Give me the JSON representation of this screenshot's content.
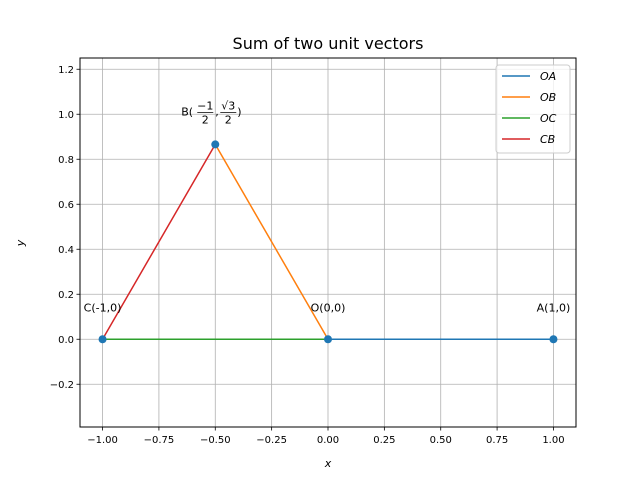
{
  "chart_data": {
    "type": "line",
    "title": "Sum of two unit vectors",
    "xlabel": "x",
    "ylabel": "y",
    "xlim": [
      -1.1,
      1.1
    ],
    "ylim": [
      -0.39,
      1.25
    ],
    "xticks": [
      -1.0,
      -0.75,
      -0.5,
      -0.25,
      0.0,
      0.25,
      0.5,
      0.75,
      1.0
    ],
    "xtick_labels": [
      "−1.00",
      "−0.75",
      "−0.50",
      "−0.25",
      "0.00",
      "0.25",
      "0.50",
      "0.75",
      "1.00"
    ],
    "yticks": [
      -0.2,
      0.0,
      0.2,
      0.4,
      0.6,
      0.8,
      1.0,
      1.2
    ],
    "ytick_labels": [
      "−0.2",
      "0.0",
      "0.2",
      "0.4",
      "0.6",
      "0.8",
      "1.0",
      "1.2"
    ],
    "grid": true,
    "legend_position": "top-right",
    "series": [
      {
        "name": "OA",
        "color": "#1f77b4",
        "x": [
          1,
          0
        ],
        "y": [
          0,
          0
        ]
      },
      {
        "name": "OB",
        "color": "#ff7f0e",
        "x": [
          -0.5,
          0
        ],
        "y": [
          0.866,
          0
        ]
      },
      {
        "name": "OC",
        "color": "#2ca02c",
        "x": [
          -1,
          0
        ],
        "y": [
          0,
          0
        ]
      },
      {
        "name": "CB",
        "color": "#d62728",
        "x": [
          -0.5,
          -1
        ],
        "y": [
          0.866,
          0
        ]
      }
    ],
    "points": [
      {
        "x": 1,
        "y": 0,
        "label": "A(1,0)"
      },
      {
        "x": -0.5,
        "y": 0.866,
        "label": "B"
      },
      {
        "x": -1,
        "y": 0,
        "label": "C(-1,0)"
      },
      {
        "x": 0,
        "y": 0,
        "label": "O(0,0)"
      }
    ],
    "point_b_label": {
      "prefix": "B(",
      "num1": "−1",
      "den1": "2",
      "sep": ",",
      "num2": "√3",
      "den2": "2",
      "suffix": ")"
    },
    "marker_color": "#1f77b4"
  }
}
